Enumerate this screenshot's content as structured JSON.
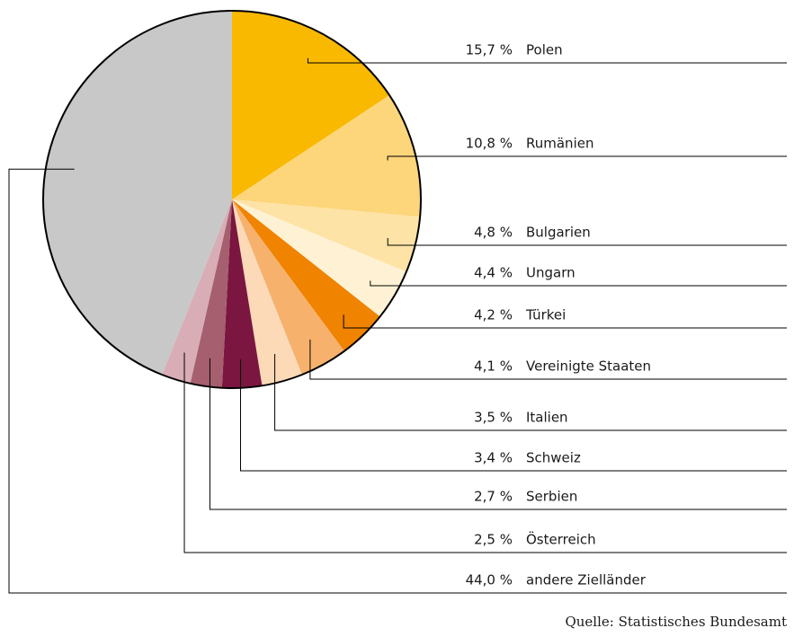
{
  "chart_data": {
    "type": "pie",
    "categories": [
      "Polen",
      "Rumänien",
      "Bulgarien",
      "Ungarn",
      "Türkei",
      "Vereinigte Staaten",
      "Italien",
      "Schweiz",
      "Serbien",
      "Österreich",
      "andere Zielländer"
    ],
    "values": [
      15.7,
      10.8,
      4.8,
      4.4,
      4.2,
      4.1,
      3.5,
      3.4,
      2.7,
      2.5,
      44.0
    ],
    "value_labels": [
      "15,7 %",
      "10,8 %",
      "4,8 %",
      "4,4 %",
      "4,2 %",
      "4,1 %",
      "3,5 %",
      "3,4 %",
      "2,7 %",
      "2,5 %",
      "44,0 %"
    ],
    "colors": [
      "#f9b900",
      "#fdd57a",
      "#fee3a6",
      "#fff2d4",
      "#f08300",
      "#f6b26d",
      "#fcd9b7",
      "#7b1640",
      "#a65f6e",
      "#d8adb5",
      "#c8c8c8"
    ],
    "source": "Quelle: Statistisches Bundesamt"
  }
}
